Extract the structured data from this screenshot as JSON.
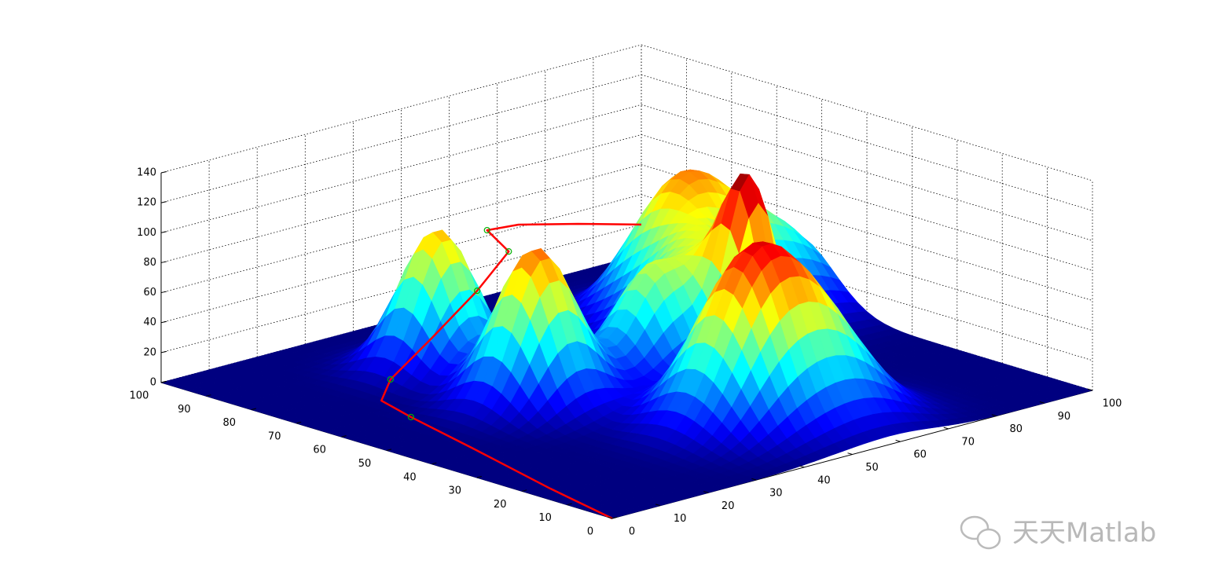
{
  "chart_data": {
    "type": "surface3d",
    "xlim": [
      0,
      100
    ],
    "ylim": [
      0,
      100
    ],
    "zlim": [
      0,
      140
    ],
    "xticks": [
      0,
      10,
      20,
      30,
      40,
      50,
      60,
      70,
      80,
      90,
      100
    ],
    "yticks": [
      0,
      10,
      20,
      30,
      40,
      50,
      60,
      70,
      80,
      90,
      100
    ],
    "zticks": [
      0,
      20,
      40,
      60,
      80,
      100,
      120,
      140
    ],
    "grid": true,
    "colormap": "jet",
    "peaks": [
      {
        "x": 35,
        "y": 76,
        "height": 94,
        "width": 6
      },
      {
        "x": 33,
        "y": 52,
        "height": 105,
        "width": 6.5
      },
      {
        "x": 80,
        "y": 70,
        "height": 87,
        "width": 8
      },
      {
        "x": 68,
        "y": 42,
        "height": 112,
        "width": 4.5
      },
      {
        "x": 95,
        "y": 65,
        "height": 50,
        "width": 8
      },
      {
        "x": 55,
        "y": 50,
        "height": 64,
        "width": 6
      },
      {
        "x": 48,
        "y": 22,
        "height": 100,
        "width": 8
      },
      {
        "x": 60,
        "y": 18,
        "height": 60,
        "width": 8
      },
      {
        "x": 70,
        "y": 55,
        "height": 70,
        "width": 8
      }
    ],
    "path": {
      "color": "#ff0000",
      "x": [
        0,
        3.0,
        8.2,
        12.2,
        14.4,
        21.0,
        35.4,
        52.1,
        64.5,
        64.4,
        69.9,
        85.0,
        100
      ],
      "y": [
        0,
        16.9,
        39.9,
        57.6,
        66.5,
        71.5,
        77.6,
        85.4,
        91.6,
        96.3,
        95.2,
        98.1,
        100
      ],
      "z": [
        0,
        2,
        4,
        5,
        6,
        10,
        20,
        30,
        40,
        50,
        50,
        35,
        20
      ]
    },
    "waypoints": {
      "color": "#00b000",
      "x": [
        12.2,
        21.0,
        52.1,
        64.5,
        64.4
      ],
      "y": [
        57.6,
        71.5,
        85.4,
        91.6,
        96.3
      ],
      "z": [
        5,
        10,
        30,
        40,
        50
      ]
    }
  },
  "watermark": "天天Matlab"
}
